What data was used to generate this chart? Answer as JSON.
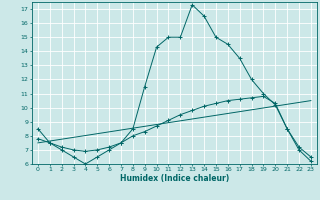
{
  "title": "",
  "xlabel": "Humidex (Indice chaleur)",
  "bg_color": "#cce8e8",
  "grid_color": "#ffffff",
  "line_color": "#006666",
  "xlim": [
    -0.5,
    23.5
  ],
  "ylim": [
    6,
    17.5
  ],
  "xticks": [
    0,
    1,
    2,
    3,
    4,
    5,
    6,
    7,
    8,
    9,
    10,
    11,
    12,
    13,
    14,
    15,
    16,
    17,
    18,
    19,
    20,
    21,
    22,
    23
  ],
  "yticks": [
    6,
    7,
    8,
    9,
    10,
    11,
    12,
    13,
    14,
    15,
    16,
    17
  ],
  "line1_x": [
    0,
    1,
    2,
    3,
    4,
    5,
    6,
    7,
    8,
    9,
    10,
    11,
    12,
    13,
    14,
    15,
    16,
    17,
    18,
    19,
    20,
    21,
    22,
    23
  ],
  "line1_y": [
    8.5,
    7.5,
    7.0,
    6.5,
    6.0,
    6.5,
    7.0,
    7.5,
    8.5,
    11.5,
    14.3,
    15.0,
    15.0,
    17.3,
    16.5,
    15.0,
    14.5,
    13.5,
    12.0,
    11.0,
    10.2,
    8.5,
    7.0,
    6.2
  ],
  "line2_x": [
    0,
    1,
    2,
    3,
    4,
    5,
    6,
    7,
    8,
    9,
    10,
    11,
    12,
    13,
    14,
    15,
    16,
    17,
    18,
    19,
    20,
    21,
    22,
    23
  ],
  "line2_y": [
    7.8,
    7.5,
    7.2,
    7.0,
    6.9,
    7.0,
    7.2,
    7.5,
    8.0,
    8.3,
    8.7,
    9.1,
    9.5,
    9.8,
    10.1,
    10.3,
    10.5,
    10.6,
    10.7,
    10.8,
    10.3,
    8.5,
    7.2,
    6.5
  ],
  "line3_x": [
    0,
    23
  ],
  "line3_y": [
    7.5,
    10.5
  ]
}
